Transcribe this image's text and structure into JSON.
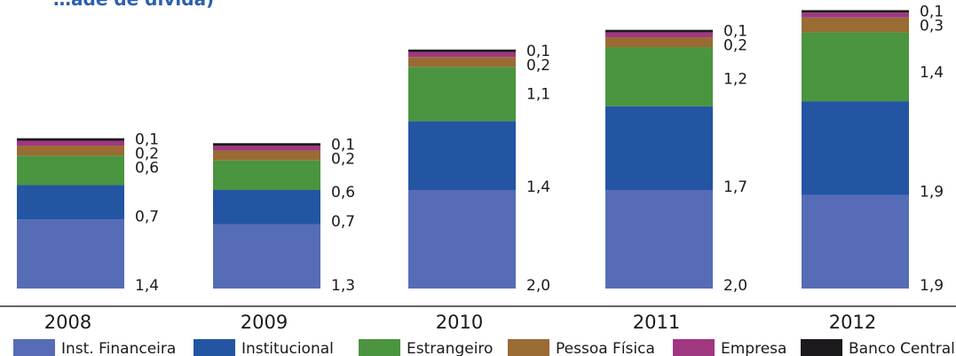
{
  "header": {
    "partial_title": "…ade de dívida)"
  },
  "chart_data": {
    "type": "bar",
    "stacked": true,
    "categories": [
      "2008",
      "2009",
      "2010",
      "2011",
      "2012"
    ],
    "series": [
      {
        "name": "Inst. Financeira",
        "color": "#566cb6",
        "values": [
          1.4,
          1.3,
          2.0,
          2.0,
          1.9
        ],
        "labels": [
          "1,4",
          "1,3",
          "2,0",
          "2,0",
          "1,9"
        ]
      },
      {
        "name": "Institucional",
        "color": "#2355a3",
        "values": [
          0.7,
          0.7,
          1.4,
          1.7,
          1.9
        ],
        "labels": [
          "0,7",
          "0,7",
          "1,4",
          "1,7",
          "1,9"
        ]
      },
      {
        "name": "Estrangeiro",
        "color": "#4b9440",
        "values": [
          0.6,
          0.6,
          1.1,
          1.2,
          1.4
        ],
        "labels": [
          "0,6",
          "0,6",
          "1,1",
          "1,2",
          "1,4"
        ]
      },
      {
        "name": "Pessoa Física",
        "color": "#9a6b33",
        "values": [
          0.2,
          0.2,
          0.2,
          0.2,
          0.3
        ],
        "labels": [
          "0,2",
          "0,2",
          "0,2",
          "0,2",
          "0,3"
        ]
      },
      {
        "name": "Empresa",
        "color": "#a03781",
        "values": [
          0.1,
          0.1,
          0.1,
          0.1,
          0.1
        ],
        "labels": [
          "0,1",
          "0,1",
          "0,1",
          "0,1",
          "0,1"
        ]
      },
      {
        "name": "Banco Central",
        "color": "#1c1a1c",
        "values": [
          0.05,
          0.05,
          0.05,
          0.05,
          0.05
        ],
        "labels": [
          "",
          "",
          "",
          "",
          ""
        ]
      }
    ],
    "legend_position": "bottom",
    "grid": false
  }
}
